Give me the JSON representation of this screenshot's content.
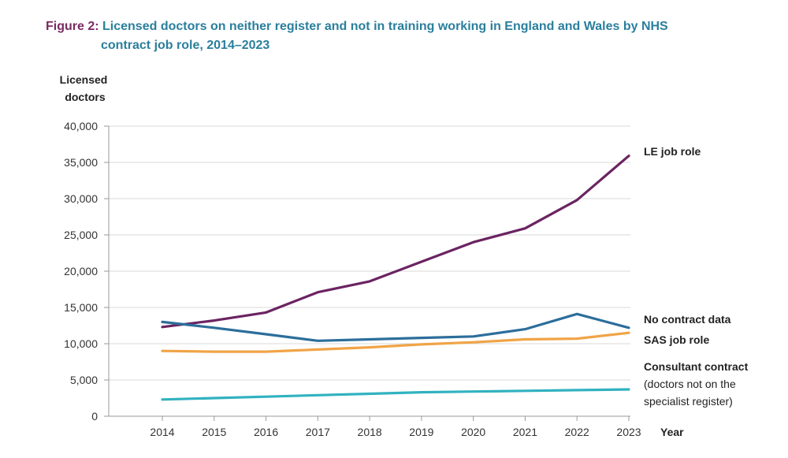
{
  "figure": {
    "number": "Figure 2:",
    "title_line1": "Licensed doctors on neither register and not in training working in England and Wales by NHS",
    "title_line2": "contract job role, 2014–2023"
  },
  "chart_data": {
    "type": "line",
    "title": "Licensed doctors on neither register and not in training working in England and Wales by NHS contract job role, 2014–2023",
    "ylabel_lines": [
      "Licensed",
      "doctors"
    ],
    "xlabel": "Year",
    "x": [
      2014,
      2015,
      2016,
      2017,
      2018,
      2019,
      2020,
      2021,
      2022,
      2023
    ],
    "ylim": [
      0,
      40000
    ],
    "yticks": [
      0,
      5000,
      10000,
      15000,
      20000,
      25000,
      30000,
      35000,
      40000
    ],
    "ytick_labels": [
      "0",
      "5,000",
      "10,000",
      "15,000",
      "20,000",
      "25,000",
      "30,000",
      "35,000",
      "40,000"
    ],
    "grid": "horizontal",
    "legend": "direct labels at right end of lines",
    "series": [
      {
        "name": "LE job role",
        "label_lines": [
          "LE job role"
        ],
        "color": "#6b2461",
        "values": [
          12300,
          13200,
          14300,
          17100,
          18600,
          21300,
          24000,
          25900,
          29800,
          35900
        ]
      },
      {
        "name": "No contract data",
        "label_lines": [
          "No contract data"
        ],
        "color": "#2c6e9b",
        "values": [
          13000,
          12200,
          11300,
          10400,
          10600,
          10800,
          11000,
          12000,
          14100,
          12200
        ]
      },
      {
        "name": "SAS job role",
        "label_lines": [
          "SAS job role"
        ],
        "color": "#f0a447",
        "values": [
          9000,
          8900,
          8900,
          9200,
          9500,
          9900,
          10200,
          10600,
          10700,
          11500
        ]
      },
      {
        "name": "Consultant contract",
        "label_lines": [
          "Consultant contract",
          "(doctors not on the",
          "specialist register)"
        ],
        "color": "#31b2c0",
        "values": [
          2300,
          2500,
          2700,
          2900,
          3100,
          3300,
          3400,
          3500,
          3600,
          3700
        ]
      }
    ]
  }
}
